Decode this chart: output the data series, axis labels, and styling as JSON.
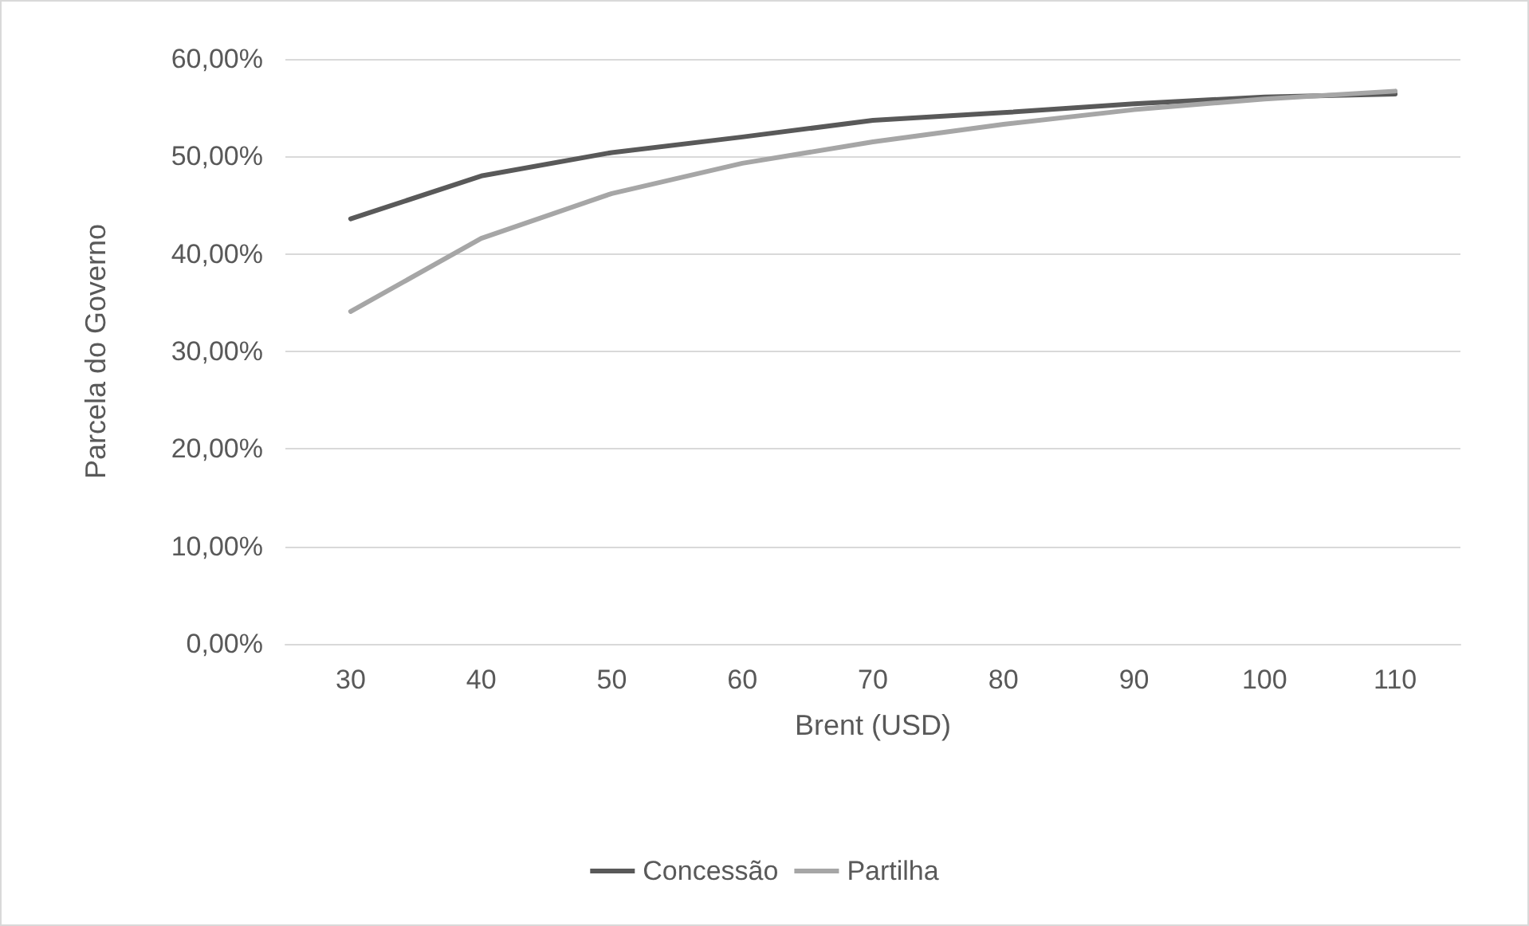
{
  "chart_data": {
    "type": "line",
    "xlabel": "Brent (USD)",
    "ylabel": "Parcela do Governo",
    "categories": [
      "30",
      "40",
      "50",
      "60",
      "70",
      "80",
      "90",
      "100",
      "110"
    ],
    "series": [
      {
        "name": "Concessão",
        "color": "#595959",
        "values": [
          43.6,
          48.0,
          50.4,
          52.0,
          53.7,
          54.5,
          55.4,
          56.1,
          56.4
        ]
      },
      {
        "name": "Partilha",
        "color": "#a6a6a6",
        "values": [
          34.1,
          41.6,
          46.2,
          49.3,
          51.5,
          53.3,
          54.8,
          55.9,
          56.7
        ]
      }
    ],
    "ylim": [
      0,
      60
    ],
    "yticks": [
      {
        "value": 0,
        "label": "0,00%"
      },
      {
        "value": 10,
        "label": "10,00%"
      },
      {
        "value": 20,
        "label": "20,00%"
      },
      {
        "value": 30,
        "label": "30,00%"
      },
      {
        "value": 40,
        "label": "40,00%"
      },
      {
        "value": 50,
        "label": "50,00%"
      },
      {
        "value": 60,
        "label": "60,00%"
      }
    ],
    "grid": "y",
    "legend": "bottom",
    "marker": "none",
    "line_style": "solid"
  }
}
